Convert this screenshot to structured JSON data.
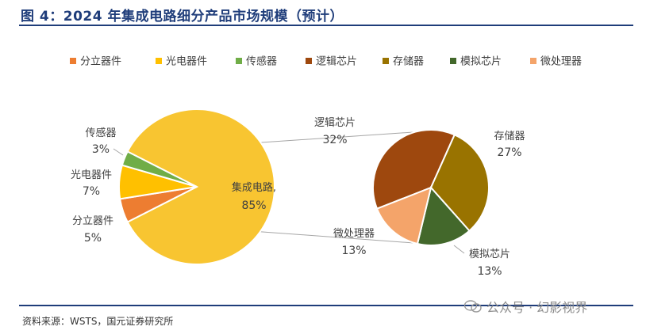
{
  "header": {
    "title": "图 4：2024 年集成电路细分产品市场规模（预计）"
  },
  "footer": {
    "source": "资料来源：WSTS，国元证券研究所"
  },
  "watermark": {
    "text": "公众号 · 幻影视界",
    "icon": "wechat-icon"
  },
  "colors": {
    "分立器件": "#ED7D31",
    "光电器件": "#FFC000",
    "传感器": "#70AD47",
    "集成电路": "#F8C531",
    "逻辑芯片": "#9E480E",
    "存储器": "#997300",
    "模拟芯片": "#43682B",
    "微处理器": "#F4A46A"
  },
  "chart_data": [
    {
      "type": "pie",
      "title": "",
      "labels": [
        "集成电路",
        "分立器件",
        "光电器件",
        "传感器"
      ],
      "values": [
        85,
        5,
        7,
        3
      ],
      "display_labels": [
        "集成电路,",
        "分立器件",
        "光电器件",
        "传感器"
      ],
      "display_values": [
        "85%",
        "5%",
        "7%",
        "3%"
      ],
      "legend": [
        "分立器件",
        "光电器件",
        "传感器",
        "逻辑芯片",
        "存储器",
        "模拟芯片",
        "微处理器"
      ],
      "legend_position": "top"
    },
    {
      "type": "pie",
      "title": "",
      "labels": [
        "逻辑芯片",
        "存储器",
        "模拟芯片",
        "微处理器"
      ],
      "values": [
        32,
        27,
        13,
        13
      ],
      "display_values": [
        "32%",
        "27%",
        "13%",
        "13%"
      ]
    }
  ]
}
